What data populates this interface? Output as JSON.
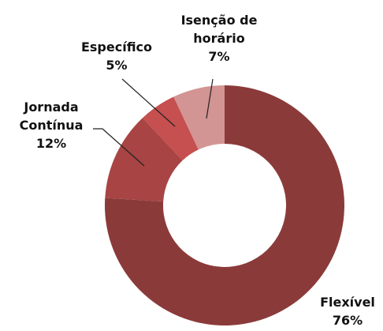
{
  "chart_data": {
    "type": "donut",
    "categories": [
      "Flexível",
      "Jornada Contínua",
      "Específico",
      "Isenção de horário"
    ],
    "values": [
      76,
      12,
      5,
      7
    ],
    "value_labels": [
      "76%",
      "12%",
      "5%",
      "7%"
    ],
    "colors": [
      "#8b3a3a",
      "#a84444",
      "#c64f4f",
      "#d39494"
    ]
  }
}
